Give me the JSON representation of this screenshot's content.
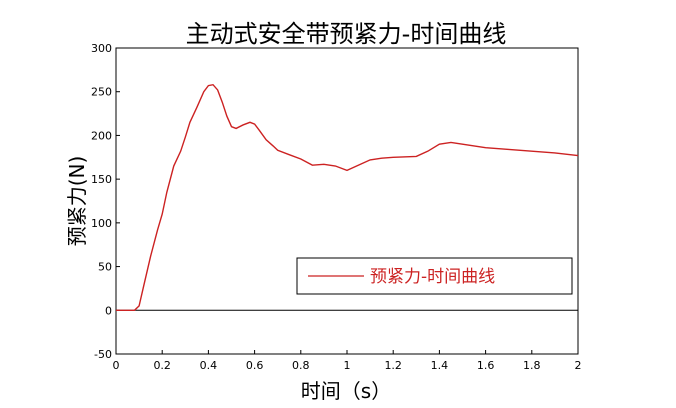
{
  "chart_data": {
    "type": "line",
    "title": "主动式安全带预紧力-时间曲线",
    "xlabel": "时间（s）",
    "ylabel": "预紧力(N)",
    "xlim": [
      0,
      2
    ],
    "ylim": [
      -50,
      300
    ],
    "x_ticks": [
      "0",
      "0.2",
      "0.4",
      "0.6",
      "0.8",
      "1",
      "1.2",
      "1.4",
      "1.6",
      "1.8",
      "2"
    ],
    "y_ticks": [
      "-50",
      "0",
      "50",
      "100",
      "150",
      "200",
      "250",
      "300"
    ],
    "grid": false,
    "zero_line": true,
    "legend_position": "lower-right",
    "series": [
      {
        "name": "预紧力-时间曲线",
        "color": "#cc2222",
        "x": [
          0,
          0.05,
          0.08,
          0.1,
          0.12,
          0.15,
          0.18,
          0.2,
          0.22,
          0.25,
          0.28,
          0.3,
          0.32,
          0.35,
          0.38,
          0.4,
          0.42,
          0.44,
          0.46,
          0.48,
          0.5,
          0.52,
          0.55,
          0.58,
          0.6,
          0.62,
          0.65,
          0.68,
          0.7,
          0.75,
          0.8,
          0.85,
          0.9,
          0.95,
          1.0,
          1.05,
          1.1,
          1.15,
          1.2,
          1.3,
          1.35,
          1.4,
          1.45,
          1.5,
          1.55,
          1.6,
          1.7,
          1.8,
          1.9,
          2.0
        ],
        "y": [
          0,
          0,
          0,
          5,
          28,
          62,
          92,
          110,
          135,
          165,
          182,
          198,
          215,
          232,
          250,
          257,
          258,
          252,
          238,
          222,
          210,
          208,
          212,
          215,
          213,
          206,
          195,
          188,
          183,
          178,
          173,
          166,
          167,
          165,
          160,
          166,
          172,
          174,
          175,
          176,
          182,
          190,
          192,
          190,
          188,
          186,
          184,
          182,
          180,
          177
        ]
      }
    ]
  }
}
